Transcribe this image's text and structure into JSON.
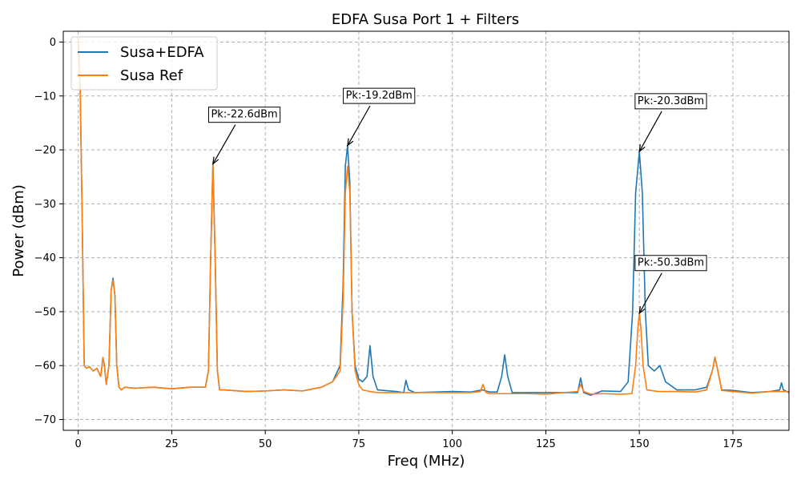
{
  "chart_data": {
    "type": "line",
    "title": "EDFA Susa Port 1 + Filters",
    "xlabel": "Freq (MHz)",
    "ylabel": "Power (dBm)",
    "xlim": [
      -4,
      190
    ],
    "ylim": [
      -72,
      2
    ],
    "xticks": [
      0,
      25,
      50,
      75,
      100,
      125,
      150,
      175
    ],
    "yticks": [
      0,
      -10,
      -20,
      -30,
      -40,
      -50,
      -60,
      -70
    ],
    "xtick_labels": [
      "0",
      "25",
      "50",
      "75",
      "100",
      "125",
      "150",
      "175"
    ],
    "ytick_labels": [
      "0",
      "−10",
      "−20",
      "−30",
      "−40",
      "−50",
      "−60",
      "−70"
    ],
    "grid": true,
    "legend_position": "top-left",
    "series": [
      {
        "name": "Susa+EDFA",
        "color": "#1f77b4",
        "x": [
          0,
          0.5,
          1,
          1.6,
          2.2,
          3,
          4,
          5,
          6,
          6.6,
          7,
          7.5,
          8.2,
          8.8,
          9.3,
          9.8,
          10.3,
          10.9,
          11.5,
          12.5,
          15,
          20,
          25,
          30,
          34,
          34.8,
          35.4,
          36,
          36.6,
          37.2,
          37.8,
          39,
          45,
          50,
          55,
          60,
          65,
          68,
          70,
          70.8,
          71.4,
          72,
          72.6,
          73.2,
          74,
          75,
          76,
          77.2,
          78,
          78.8,
          80,
          85,
          87,
          87.6,
          88.3,
          90,
          100,
          105,
          108,
          110,
          112,
          113.2,
          114,
          114.8,
          116,
          120,
          125,
          130,
          133.5,
          134.3,
          135.1,
          137,
          140,
          145,
          147,
          148.2,
          149,
          150,
          150.8,
          151.6,
          152.4,
          154,
          155.5,
          157,
          160,
          165,
          168,
          169.5,
          170.2,
          171,
          172,
          175,
          180,
          185,
          187.5,
          188,
          188.5,
          190
        ],
        "y": [
          0.5,
          -8,
          -30,
          -60,
          -60.5,
          -60.2,
          -61,
          -60.5,
          -62,
          -58.5,
          -60,
          -63.5,
          -60,
          -46,
          -43.8,
          -47,
          -60,
          -64,
          -64.5,
          -64,
          -64.2,
          -64,
          -64.3,
          -64,
          -64,
          -61,
          -40,
          -22.6,
          -40,
          -61,
          -64.5,
          -64.5,
          -64.8,
          -64.7,
          -64.5,
          -64.7,
          -64,
          -63,
          -60,
          -45,
          -23,
          -19.2,
          -26,
          -50,
          -60,
          -62.5,
          -63,
          -62,
          -56.3,
          -62,
          -64.5,
          -64.8,
          -65,
          -62.7,
          -64.5,
          -65,
          -64.8,
          -64.9,
          -64.5,
          -64.9,
          -64.9,
          -62,
          -58,
          -62,
          -65,
          -65,
          -65,
          -65,
          -65,
          -62.3,
          -65,
          -65.5,
          -64.7,
          -64.8,
          -63,
          -50,
          -28,
          -20.3,
          -28,
          -50,
          -60,
          -61,
          -60,
          -63,
          -64.5,
          -64.5,
          -64,
          -61,
          -58.5,
          -61,
          -64.5,
          -64.6,
          -65,
          -64.8,
          -64.5,
          -63.2,
          -64.5,
          -65
        ]
      },
      {
        "name": "Susa Ref",
        "color": "#ff7f0e",
        "x": [
          0,
          0.5,
          1,
          1.6,
          2.2,
          3,
          4,
          5,
          6,
          6.6,
          7,
          7.5,
          8.2,
          8.8,
          9.3,
          9.8,
          10.3,
          10.9,
          11.5,
          12.5,
          15,
          20,
          25,
          30,
          34,
          34.8,
          35.4,
          36,
          36.6,
          37.2,
          37.8,
          39,
          45,
          50,
          55,
          60,
          65,
          68,
          70,
          70.8,
          71.4,
          72,
          72.6,
          73.2,
          74,
          75,
          76,
          78,
          80,
          85,
          90,
          100,
          105,
          107.5,
          108.2,
          109,
          110,
          120,
          125,
          130,
          133.5,
          134.3,
          135.1,
          137,
          140,
          145,
          148,
          149,
          149.6,
          150,
          150.4,
          151,
          152,
          155,
          160,
          165,
          168,
          169.5,
          170.2,
          171,
          172,
          175,
          180,
          185,
          190
        ],
        "y": [
          0.8,
          -8,
          -30,
          -60,
          -60.5,
          -60.2,
          -61,
          -60.5,
          -62,
          -58.5,
          -60,
          -63.5,
          -60,
          -46,
          -44.2,
          -47,
          -60,
          -64,
          -64.5,
          -64,
          -64.2,
          -64,
          -64.3,
          -64,
          -64,
          -61,
          -40,
          -22.6,
          -40,
          -61,
          -64.5,
          -64.5,
          -64.8,
          -64.7,
          -64.5,
          -64.7,
          -64,
          -63,
          -61,
          -48,
          -28,
          -23,
          -28,
          -50,
          -61,
          -63.5,
          -64.5,
          -64.8,
          -65,
          -65,
          -65,
          -65,
          -65,
          -64.8,
          -63.5,
          -65,
          -65.2,
          -65.2,
          -65.3,
          -65,
          -64.8,
          -63.5,
          -64.8,
          -65.3,
          -65.2,
          -65.3,
          -65.2,
          -60,
          -53,
          -50.3,
          -53,
          -60,
          -64.5,
          -64.8,
          -64.8,
          -64.9,
          -64.5,
          -61,
          -58.4,
          -61,
          -64.6,
          -64.8,
          -65.1,
          -64.8,
          -64.8
        ]
      }
    ],
    "annotations": [
      {
        "label": "Pk:-22.6dBm",
        "x": 36,
        "y": -22.6,
        "text_x": 35.5,
        "text_y": -14
      },
      {
        "label": "Pk:-19.2dBm",
        "x": 72,
        "y": -19.2,
        "text_x": 71.5,
        "text_y": -10.5
      },
      {
        "label": "Pk:-20.3dBm",
        "x": 150,
        "y": -20.3,
        "text_x": 149.5,
        "text_y": -11.5
      },
      {
        "label": "Pk:-50.3dBm",
        "x": 150,
        "y": -50.3,
        "text_x": 149.5,
        "text_y": -41.5
      }
    ]
  }
}
